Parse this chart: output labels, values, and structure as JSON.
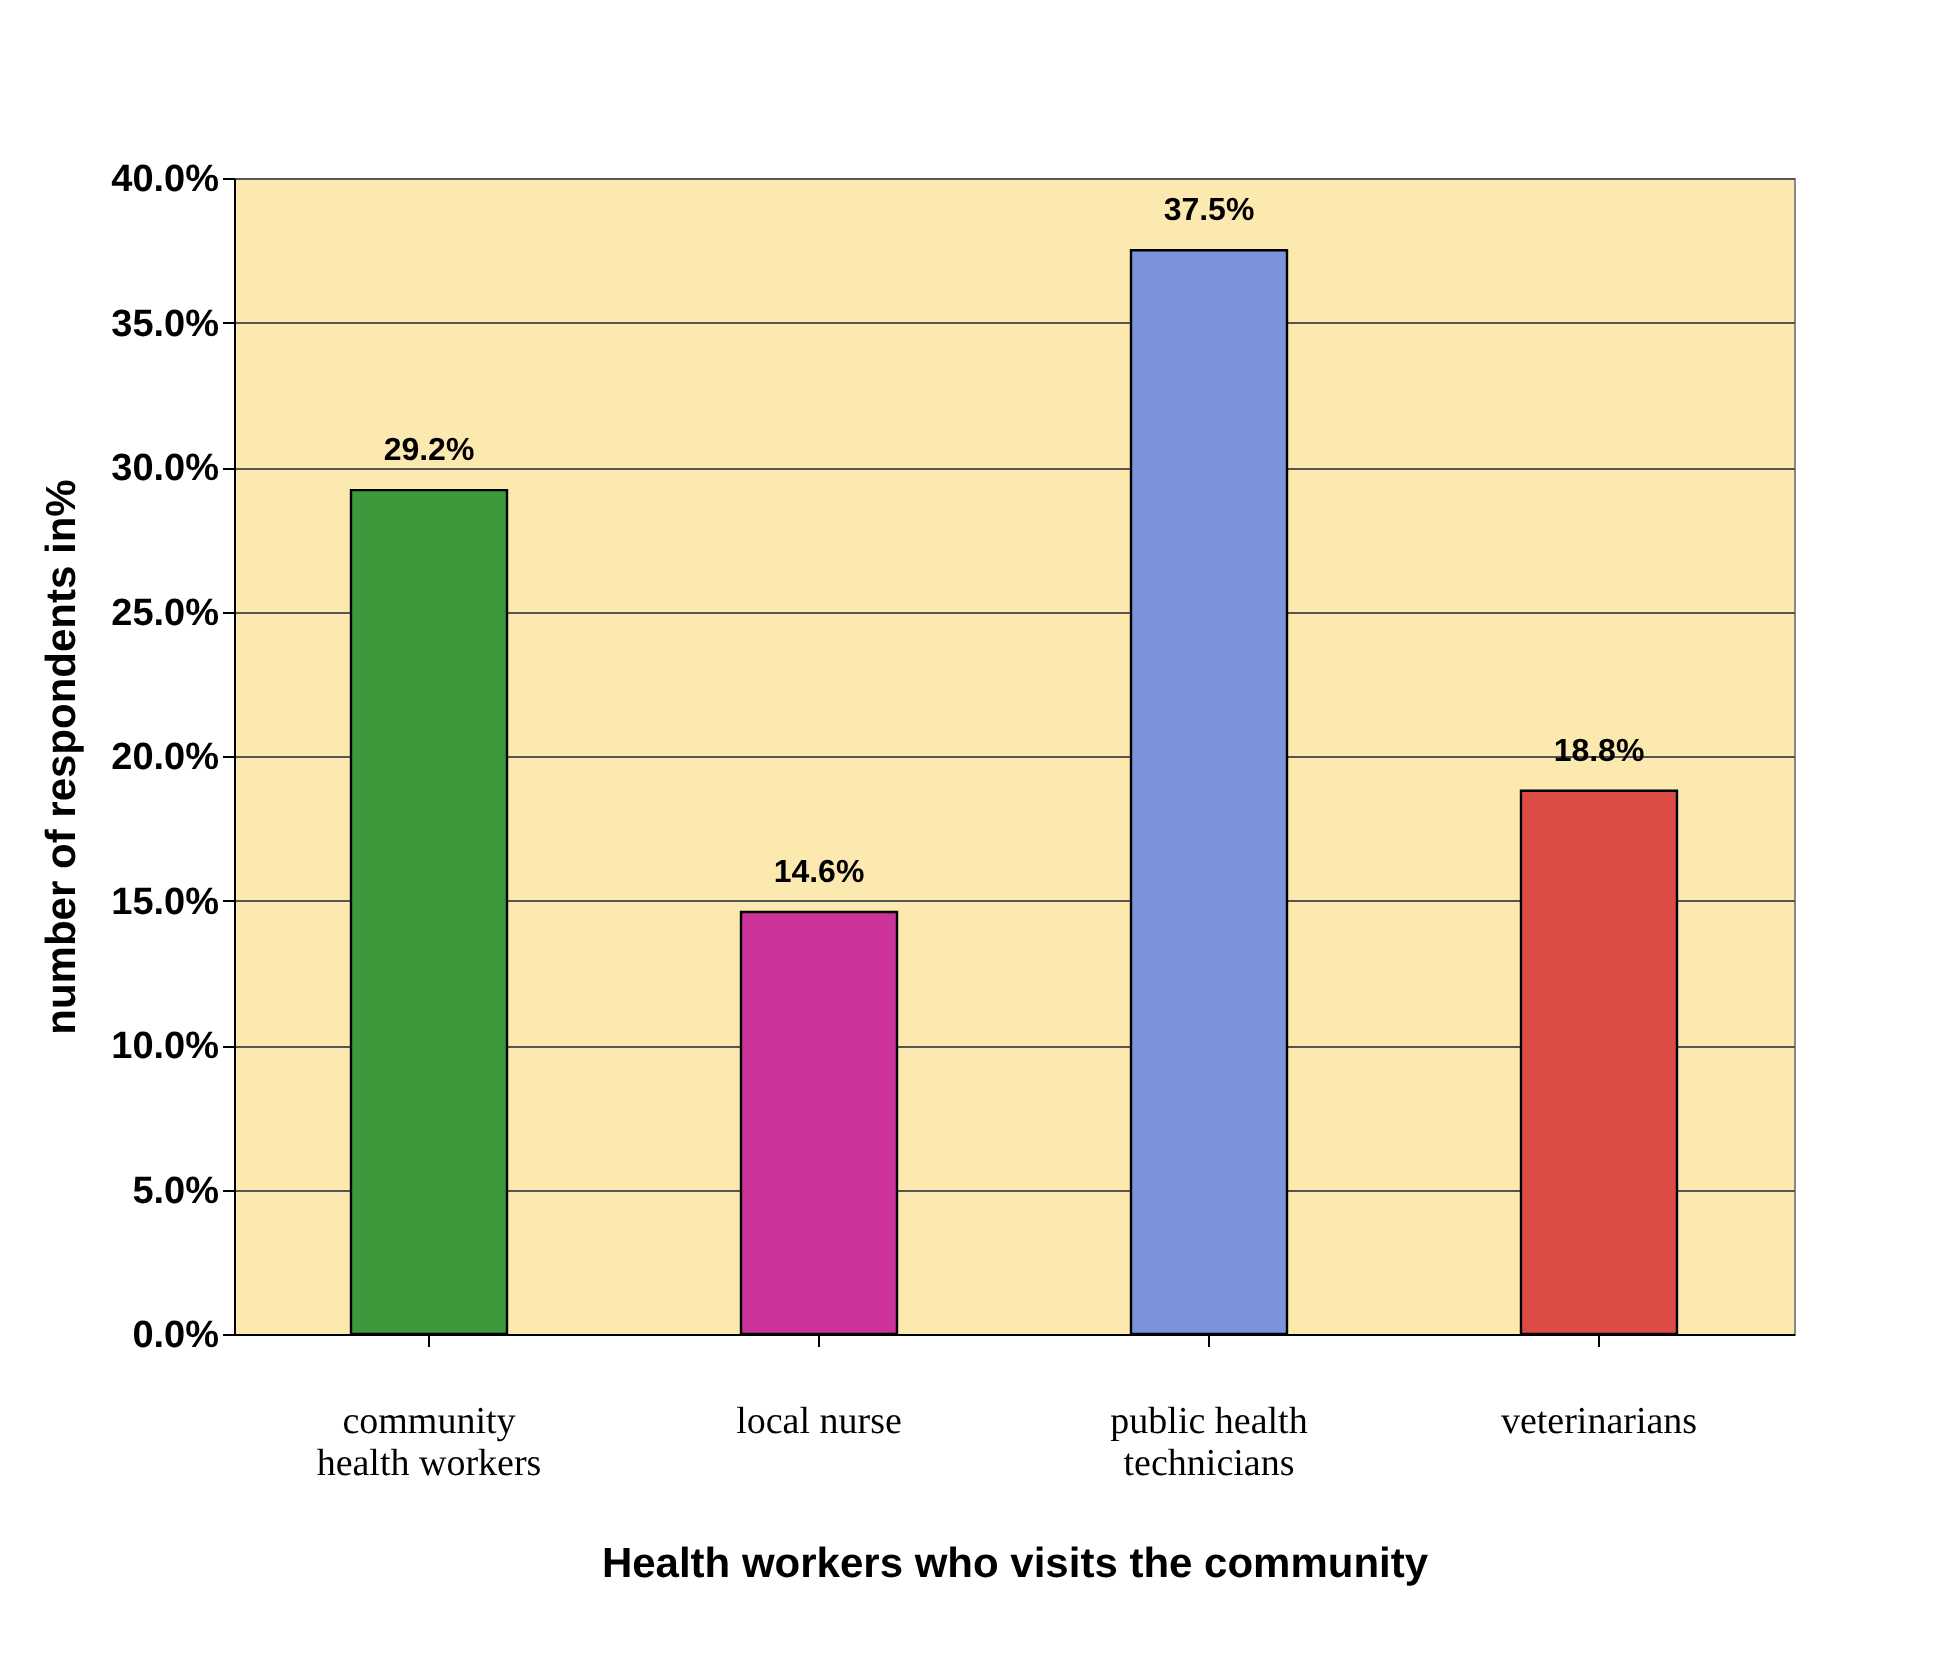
{
  "chart_data": {
    "type": "bar",
    "xlabel": "Health workers who visits the community",
    "ylabel": "number of respondents in%",
    "categories": [
      "community health workers",
      "local nurse",
      "public health technicians",
      "veterinarians"
    ],
    "values": [
      29.2,
      14.6,
      37.5,
      18.8
    ],
    "colors": [
      "#3c9a3c",
      "#cc3399",
      "#7b93db",
      "#dc4b45"
    ],
    "value_labels": [
      "29.2%",
      "14.6%",
      "37.5%",
      "18.8%"
    ],
    "ylim": [
      0,
      40
    ],
    "yticks": [
      {
        "value": 0,
        "label": "0.0%"
      },
      {
        "value": 5,
        "label": "5.0%"
      },
      {
        "value": 10,
        "label": "10.0%"
      },
      {
        "value": 15,
        "label": "15.0%"
      },
      {
        "value": 20,
        "label": "20.0%"
      },
      {
        "value": 25,
        "label": "25.0%"
      },
      {
        "value": 30,
        "label": "30.0%"
      },
      {
        "value": 35,
        "label": "35.0%"
      },
      {
        "value": 40,
        "label": "40.0%"
      }
    ],
    "grid": "y"
  }
}
